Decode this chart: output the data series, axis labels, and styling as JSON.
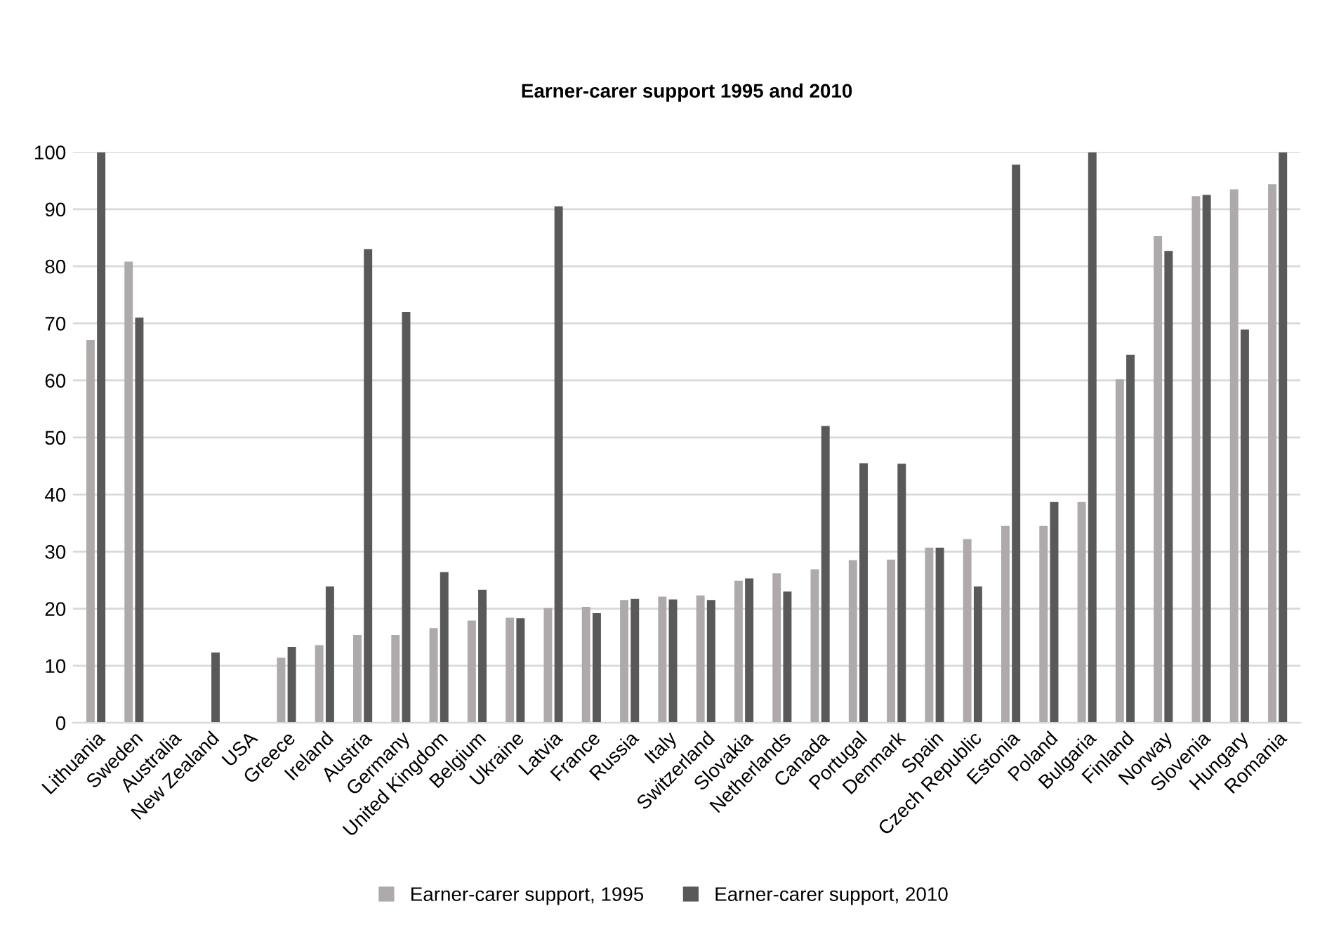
{
  "chart_data": {
    "type": "bar",
    "title": "Earner-carer support 1995 and 2010",
    "categories": [
      "Lithuania",
      "Sweden",
      "Australia",
      "New Zealand",
      "USA",
      "Greece",
      "Ireland",
      "Austria",
      "Germany",
      "United Kingdom",
      "Belgium",
      "Ukraine",
      "Latvia",
      "France",
      "Russia",
      "Italy",
      "Switzerland",
      "Slovakia",
      "Netherlands",
      "Canada",
      "Portugal",
      "Denmark",
      "Spain",
      "Czech Republic",
      "Estonia",
      "Poland",
      "Bulgaria",
      "Finland",
      "Norway",
      "Slovenia",
      "Hungary",
      "Romania"
    ],
    "series": [
      {
        "name": "Earner-carer support, 1995",
        "color": "#aeaaaa",
        "values": [
          67.1,
          80.8,
          null,
          null,
          null,
          11.4,
          13.6,
          15.4,
          15.4,
          16.6,
          17.9,
          18.4,
          20.1,
          20.3,
          21.5,
          22.1,
          22.3,
          24.9,
          26.2,
          26.9,
          28.5,
          28.6,
          30.7,
          32.2,
          34.5,
          34.5,
          38.7,
          60.2,
          85.3,
          92.3,
          93.5,
          94.4
        ]
      },
      {
        "name": "Earner-carer support, 2010",
        "color": "#595959",
        "values": [
          100,
          71.0,
          null,
          12.3,
          null,
          13.3,
          23.9,
          83.0,
          72.0,
          26.4,
          23.3,
          18.3,
          90.5,
          19.2,
          21.7,
          21.6,
          21.5,
          25.3,
          23.0,
          52.0,
          45.5,
          45.4,
          30.7,
          23.9,
          97.8,
          38.7,
          100,
          64.5,
          82.7,
          92.5,
          68.9,
          100
        ]
      }
    ],
    "ylim": [
      0,
      100
    ],
    "yticks": [
      0,
      10,
      20,
      30,
      40,
      50,
      60,
      70,
      80,
      90,
      100
    ],
    "grid": "y",
    "legend": "bottom"
  }
}
